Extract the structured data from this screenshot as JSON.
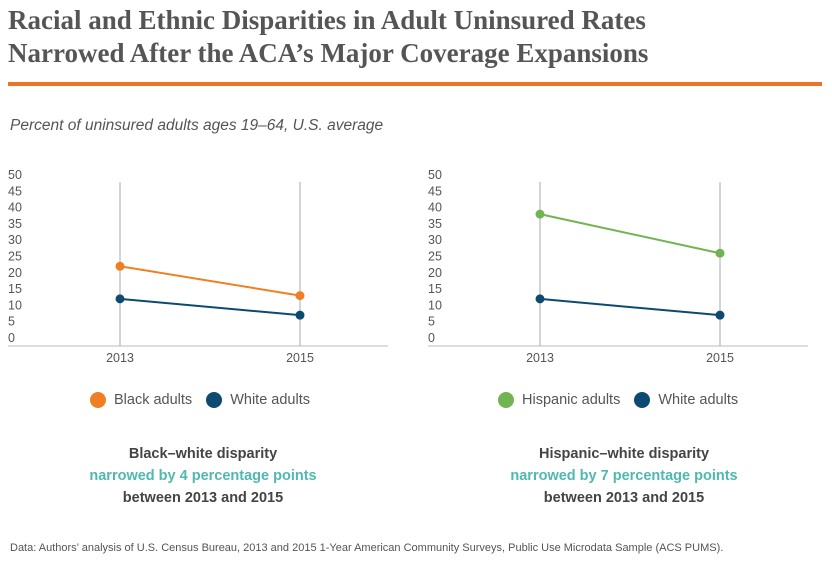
{
  "title_line1": "Racial and Ethnic Disparities in Adult Uninsured Rates",
  "title_line2": "Narrowed After the ACA’s Major Coverage Expansions",
  "subtitle": "Percent of uninsured adults ages 19–64, U.S. average",
  "colors": {
    "rule": "#e97425",
    "black": "#f07f24",
    "white": "#0d4a72",
    "hispanic": "#72b352",
    "teal": "#4fb8b0",
    "grid": "#b5b5b5"
  },
  "chart_data": [
    {
      "type": "line",
      "x": [
        "2013",
        "2015"
      ],
      "ylim": [
        0,
        50
      ],
      "yticks": [
        0,
        5,
        10,
        15,
        20,
        25,
        30,
        35,
        40,
        45,
        50
      ],
      "series": [
        {
          "name": "Black adults",
          "values": [
            22,
            13
          ],
          "color": "#f07f24"
        },
        {
          "name": "White adults",
          "values": [
            12,
            7
          ],
          "color": "#0d4a72"
        }
      ],
      "legend": [
        "Black adults",
        "White adults"
      ],
      "note": {
        "line1": "Black–white disparity",
        "line2": "narrowed by 4 percentage points",
        "line3": "between 2013 and 2015"
      }
    },
    {
      "type": "line",
      "x": [
        "2013",
        "2015"
      ],
      "ylim": [
        0,
        50
      ],
      "yticks": [
        0,
        5,
        10,
        15,
        20,
        25,
        30,
        35,
        40,
        45,
        50
      ],
      "series": [
        {
          "name": "Hispanic adults",
          "values": [
            38,
            26
          ],
          "color": "#72b352"
        },
        {
          "name": "White adults",
          "values": [
            12,
            7
          ],
          "color": "#0d4a72"
        }
      ],
      "legend": [
        "Hispanic adults",
        "White adults"
      ],
      "note": {
        "line1": "Hispanic–white disparity",
        "line2": "narrowed by 7 percentage points",
        "line3": "between 2013 and 2015"
      }
    }
  ],
  "source": "Data: Authors’ analysis of U.S. Census Bureau, 2013 and 2015 1-Year American Community Surveys, Public Use Microdata Sample (ACS PUMS)."
}
